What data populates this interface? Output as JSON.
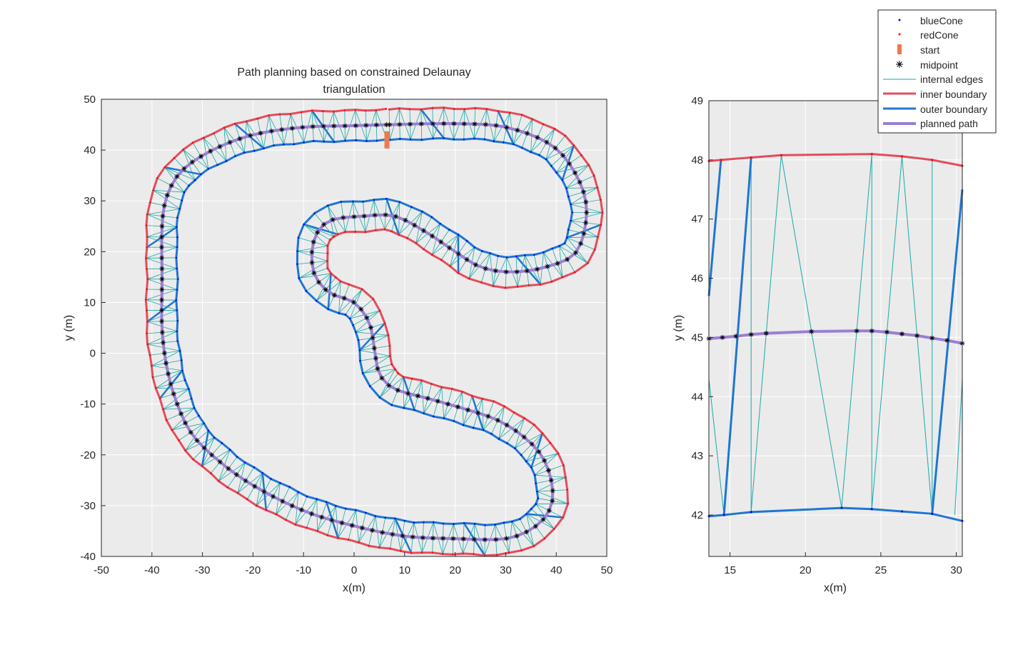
{
  "chart_data": [
    {
      "id": "main",
      "type": "line",
      "title": [
        "Path planning based on constrained Delaunay",
        "triangulation"
      ],
      "xlabel": "x(m)",
      "ylabel": "y (m)",
      "xlim": [
        -50,
        50
      ],
      "ylim": [
        -40,
        50
      ],
      "xticks": [
        -50,
        -40,
        -30,
        -20,
        -10,
        0,
        10,
        20,
        30,
        40,
        50
      ],
      "yticks": [
        -40,
        -30,
        -20,
        -10,
        0,
        10,
        20,
        30,
        40,
        50
      ],
      "xtick_labels": [
        "-50",
        "-40",
        "-30",
        "-20",
        "-10",
        "0",
        "10",
        "20",
        "30",
        "40",
        "50"
      ],
      "ytick_labels": [
        "-40",
        "-30",
        "-20",
        "-10",
        "0",
        "10",
        "20",
        "30",
        "40",
        "50"
      ],
      "grid": true,
      "centerline": [
        [
          7,
          45
        ],
        [
          20,
          45.2
        ],
        [
          30,
          44.5
        ],
        [
          39,
          41
        ],
        [
          44,
          35
        ],
        [
          46,
          28
        ],
        [
          44,
          20
        ],
        [
          38,
          17
        ],
        [
          31,
          16
        ],
        [
          25,
          17
        ],
        [
          20,
          20
        ],
        [
          14,
          24
        ],
        [
          8,
          27
        ],
        [
          2,
          27
        ],
        [
          -5,
          26
        ],
        [
          -8,
          22
        ],
        [
          -8,
          16
        ],
        [
          -5,
          12
        ],
        [
          0,
          10
        ],
        [
          3,
          6
        ],
        [
          4,
          1
        ],
        [
          5,
          -4
        ],
        [
          8,
          -7
        ],
        [
          15,
          -9
        ],
        [
          22,
          -11
        ],
        [
          28,
          -13
        ],
        [
          33,
          -16
        ],
        [
          37,
          -20
        ],
        [
          39,
          -25
        ],
        [
          39,
          -30
        ],
        [
          36,
          -34
        ],
        [
          30,
          -36.5
        ],
        [
          20,
          -36.5
        ],
        [
          10,
          -36
        ],
        [
          0,
          -34
        ],
        [
          -10,
          -31
        ],
        [
          -20,
          -26
        ],
        [
          -27,
          -21
        ],
        [
          -32,
          -16
        ],
        [
          -35,
          -10
        ],
        [
          -37,
          -3
        ],
        [
          -38,
          5
        ],
        [
          -38,
          15
        ],
        [
          -38,
          25
        ],
        [
          -37,
          31
        ],
        [
          -34,
          36
        ],
        [
          -28,
          40
        ],
        [
          -20,
          43
        ],
        [
          -10,
          44.5
        ],
        [
          0,
          44.8
        ],
        [
          7,
          45
        ]
      ],
      "series": [
        {
          "name": "blueCone",
          "color": "#0000ff"
        },
        {
          "name": "redCone",
          "color": "#ff0000"
        },
        {
          "name": "start",
          "color": "#ed7a4e"
        },
        {
          "name": "midpoint",
          "color": "#000000"
        },
        {
          "name": "internal edges",
          "color": "#1aa8aa"
        },
        {
          "name": "inner boundary",
          "color": "#e34d5c"
        },
        {
          "name": "outer boundary",
          "color": "#1f76d0"
        },
        {
          "name": "planned path",
          "color": "#9a7fd4"
        }
      ],
      "start_marker": [
        6.5,
        42
      ],
      "half_width": 3.0
    },
    {
      "id": "zoom",
      "type": "line",
      "xlabel": "x(m)",
      "ylabel": "y (m)",
      "xlim": [
        13.6,
        30.4
      ],
      "ylim": [
        41.3,
        49
      ],
      "xticks": [
        15,
        20,
        25,
        30
      ],
      "yticks": [
        42,
        43,
        44,
        45,
        46,
        47,
        48,
        49
      ],
      "xtick_labels": [
        "15",
        "20",
        "25",
        "30"
      ],
      "ytick_labels": [
        "42",
        "43",
        "44",
        "45",
        "46",
        "47",
        "48",
        "49"
      ],
      "grid": true,
      "inner_boundary": [
        [
          13.6,
          47.98
        ],
        [
          14.4,
          48.0
        ],
        [
          16.4,
          48.04
        ],
        [
          18.4,
          48.08
        ],
        [
          24.4,
          48.1
        ],
        [
          26.4,
          48.06
        ],
        [
          28.4,
          48.0
        ],
        [
          30.4,
          47.9
        ]
      ],
      "outer_boundary": [
        [
          13.6,
          41.98
        ],
        [
          14.6,
          42.0
        ],
        [
          16.4,
          42.05
        ],
        [
          22.4,
          42.12
        ],
        [
          24.4,
          42.1
        ],
        [
          26.4,
          42.06
        ],
        [
          28.4,
          42.02
        ],
        [
          30.4,
          41.9
        ]
      ],
      "planned_path": [
        [
          13.6,
          44.98
        ],
        [
          14.5,
          45.0
        ],
        [
          15.4,
          45.02
        ],
        [
          16.4,
          45.05
        ],
        [
          17.4,
          45.07
        ],
        [
          20.4,
          45.1
        ],
        [
          23.4,
          45.11
        ],
        [
          24.4,
          45.11
        ],
        [
          25.4,
          45.09
        ],
        [
          26.4,
          45.06
        ],
        [
          27.4,
          45.03
        ],
        [
          28.4,
          44.99
        ],
        [
          29.4,
          44.95
        ],
        [
          30.4,
          44.9
        ]
      ],
      "outer_edges": [
        [
          [
            13.6,
            45.7
          ],
          [
            14.4,
            48.0
          ]
        ],
        [
          [
            14.6,
            42.0
          ],
          [
            16.4,
            48.04
          ]
        ],
        [
          [
            28.4,
            42.02
          ],
          [
            30.4,
            47.5
          ]
        ]
      ],
      "internal_edges": [
        [
          [
            13.6,
            44.3
          ],
          [
            14.6,
            42.0
          ]
        ],
        [
          [
            16.4,
            42.05
          ],
          [
            16.4,
            48.04
          ]
        ],
        [
          [
            16.4,
            42.05
          ],
          [
            18.4,
            48.08
          ]
        ],
        [
          [
            18.4,
            48.08
          ],
          [
            22.4,
            42.12
          ]
        ],
        [
          [
            22.4,
            42.12
          ],
          [
            24.4,
            48.1
          ]
        ],
        [
          [
            24.4,
            42.1
          ],
          [
            24.4,
            48.1
          ]
        ],
        [
          [
            24.4,
            42.1
          ],
          [
            26.4,
            48.06
          ]
        ],
        [
          [
            26.4,
            48.06
          ],
          [
            28.4,
            42.02
          ]
        ],
        [
          [
            28.4,
            42.02
          ],
          [
            28.4,
            48.0
          ]
        ],
        [
          [
            29.9,
            42.0
          ],
          [
            30.4,
            44.3
          ]
        ]
      ]
    }
  ],
  "legend": {
    "location": "top-right",
    "entries": [
      "blueCone",
      "redCone",
      "start",
      "midpoint",
      "internal edges",
      "inner boundary",
      "outer boundary",
      "planned path"
    ]
  }
}
